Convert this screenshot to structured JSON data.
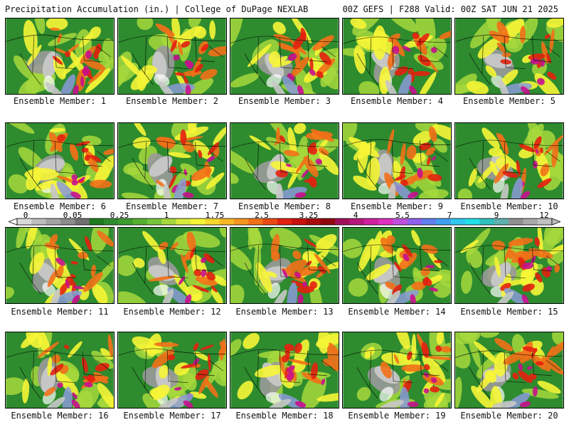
{
  "header": {
    "left": "Precipitation Accumulation (in.) | College of DuPage NEXLAB",
    "right": "00Z GEFS | F288 Valid: 00Z SAT JUN 21 2025"
  },
  "panels": [
    {
      "label": "Ensemble Member: 1"
    },
    {
      "label": "Ensemble Member: 2"
    },
    {
      "label": "Ensemble Member: 3"
    },
    {
      "label": "Ensemble Member: 4"
    },
    {
      "label": "Ensemble Member: 5"
    },
    {
      "label": "Ensemble Member: 6"
    },
    {
      "label": "Ensemble Member: 7"
    },
    {
      "label": "Ensemble Member: 8"
    },
    {
      "label": "Ensemble Member: 9"
    },
    {
      "label": "Ensemble Member: 10"
    },
    {
      "label": "Ensemble Member: 11"
    },
    {
      "label": "Ensemble Member: 12"
    },
    {
      "label": "Ensemble Member: 13"
    },
    {
      "label": "Ensemble Member: 14"
    },
    {
      "label": "Ensemble Member: 15"
    },
    {
      "label": "Ensemble Member: 16"
    },
    {
      "label": "Ensemble Member: 17"
    },
    {
      "label": "Ensemble Member: 18"
    },
    {
      "label": "Ensemble Member: 19"
    },
    {
      "label": "Ensemble Member: 20"
    }
  ],
  "colorbar": {
    "labels": [
      "0",
      "0.05",
      "0.25",
      "1",
      "1.75",
      "2.5",
      "3.25",
      "4",
      "5.5",
      "7",
      "9",
      "12"
    ],
    "colors": [
      "#d9d9d9",
      "#bdbdbd",
      "#a3a3a3",
      "#8c8c8c",
      "#707070",
      "#1e7a1e",
      "#2e8b2e",
      "#3c9c2e",
      "#55b030",
      "#76c43a",
      "#a6d83c",
      "#d8ea3a",
      "#f6f536",
      "#f8d82c",
      "#f8b824",
      "#f6961e",
      "#f27018",
      "#ec4a14",
      "#e42010",
      "#c8100e",
      "#a8080c",
      "#90080e",
      "#a0105a",
      "#b8187e",
      "#d020a0",
      "#e030c0",
      "#c050e0",
      "#9060f0",
      "#6080f0",
      "#40a0f0",
      "#30c8f0",
      "#20e0e8",
      "#30c0c0",
      "#60b0b0",
      "#909090",
      "#a8a8a8",
      "#c0c0c0"
    ],
    "map_colors": {
      "land": "#2e8b2e",
      "light": "#a6d83c",
      "moderate": "#f6f536",
      "heavy": "#f27018",
      "very_heavy": "#e42010",
      "extreme": "#c8108e",
      "dry_west": "#c8c8c8",
      "dry_west_mid": "#9a9a9a",
      "tropical": "#8a9ad8"
    }
  }
}
